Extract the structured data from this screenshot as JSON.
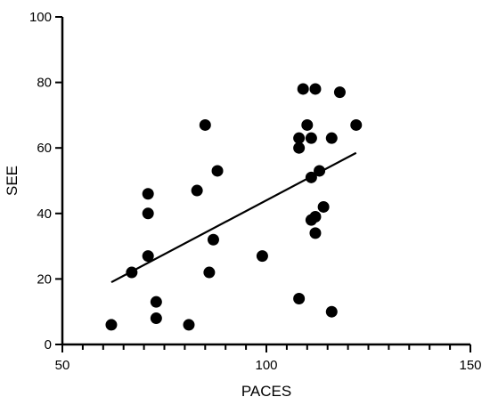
{
  "chart_data": {
    "type": "scatter",
    "title": "",
    "xlabel": "PACES",
    "ylabel": "SEE",
    "xlim": [
      50,
      150
    ],
    "ylim": [
      0,
      100
    ],
    "x_ticks": [
      50,
      100,
      150
    ],
    "y_ticks": [
      0,
      20,
      40,
      60,
      80,
      100
    ],
    "x_minor_step": 5,
    "grid": false,
    "legend": "none",
    "marker_color": "#000000",
    "points": [
      {
        "x": 62,
        "y": 6
      },
      {
        "x": 67,
        "y": 22
      },
      {
        "x": 71,
        "y": 46
      },
      {
        "x": 71,
        "y": 40
      },
      {
        "x": 71,
        "y": 27
      },
      {
        "x": 73,
        "y": 13
      },
      {
        "x": 73,
        "y": 8
      },
      {
        "x": 81,
        "y": 6
      },
      {
        "x": 83,
        "y": 47
      },
      {
        "x": 85,
        "y": 67
      },
      {
        "x": 86,
        "y": 22
      },
      {
        "x": 87,
        "y": 32
      },
      {
        "x": 88,
        "y": 53
      },
      {
        "x": 99,
        "y": 27
      },
      {
        "x": 108,
        "y": 63
      },
      {
        "x": 108,
        "y": 60
      },
      {
        "x": 108,
        "y": 14
      },
      {
        "x": 109,
        "y": 78
      },
      {
        "x": 110,
        "y": 67
      },
      {
        "x": 111,
        "y": 63
      },
      {
        "x": 111,
        "y": 51
      },
      {
        "x": 111,
        "y": 38
      },
      {
        "x": 112,
        "y": 78
      },
      {
        "x": 112,
        "y": 39
      },
      {
        "x": 112,
        "y": 34
      },
      {
        "x": 113,
        "y": 53
      },
      {
        "x": 114,
        "y": 42
      },
      {
        "x": 116,
        "y": 63
      },
      {
        "x": 116,
        "y": 10
      },
      {
        "x": 118,
        "y": 77
      },
      {
        "x": 122,
        "y": 67
      }
    ],
    "fit_line": {
      "x": [
        62,
        122
      ],
      "y": [
        19,
        58.5
      ]
    }
  }
}
